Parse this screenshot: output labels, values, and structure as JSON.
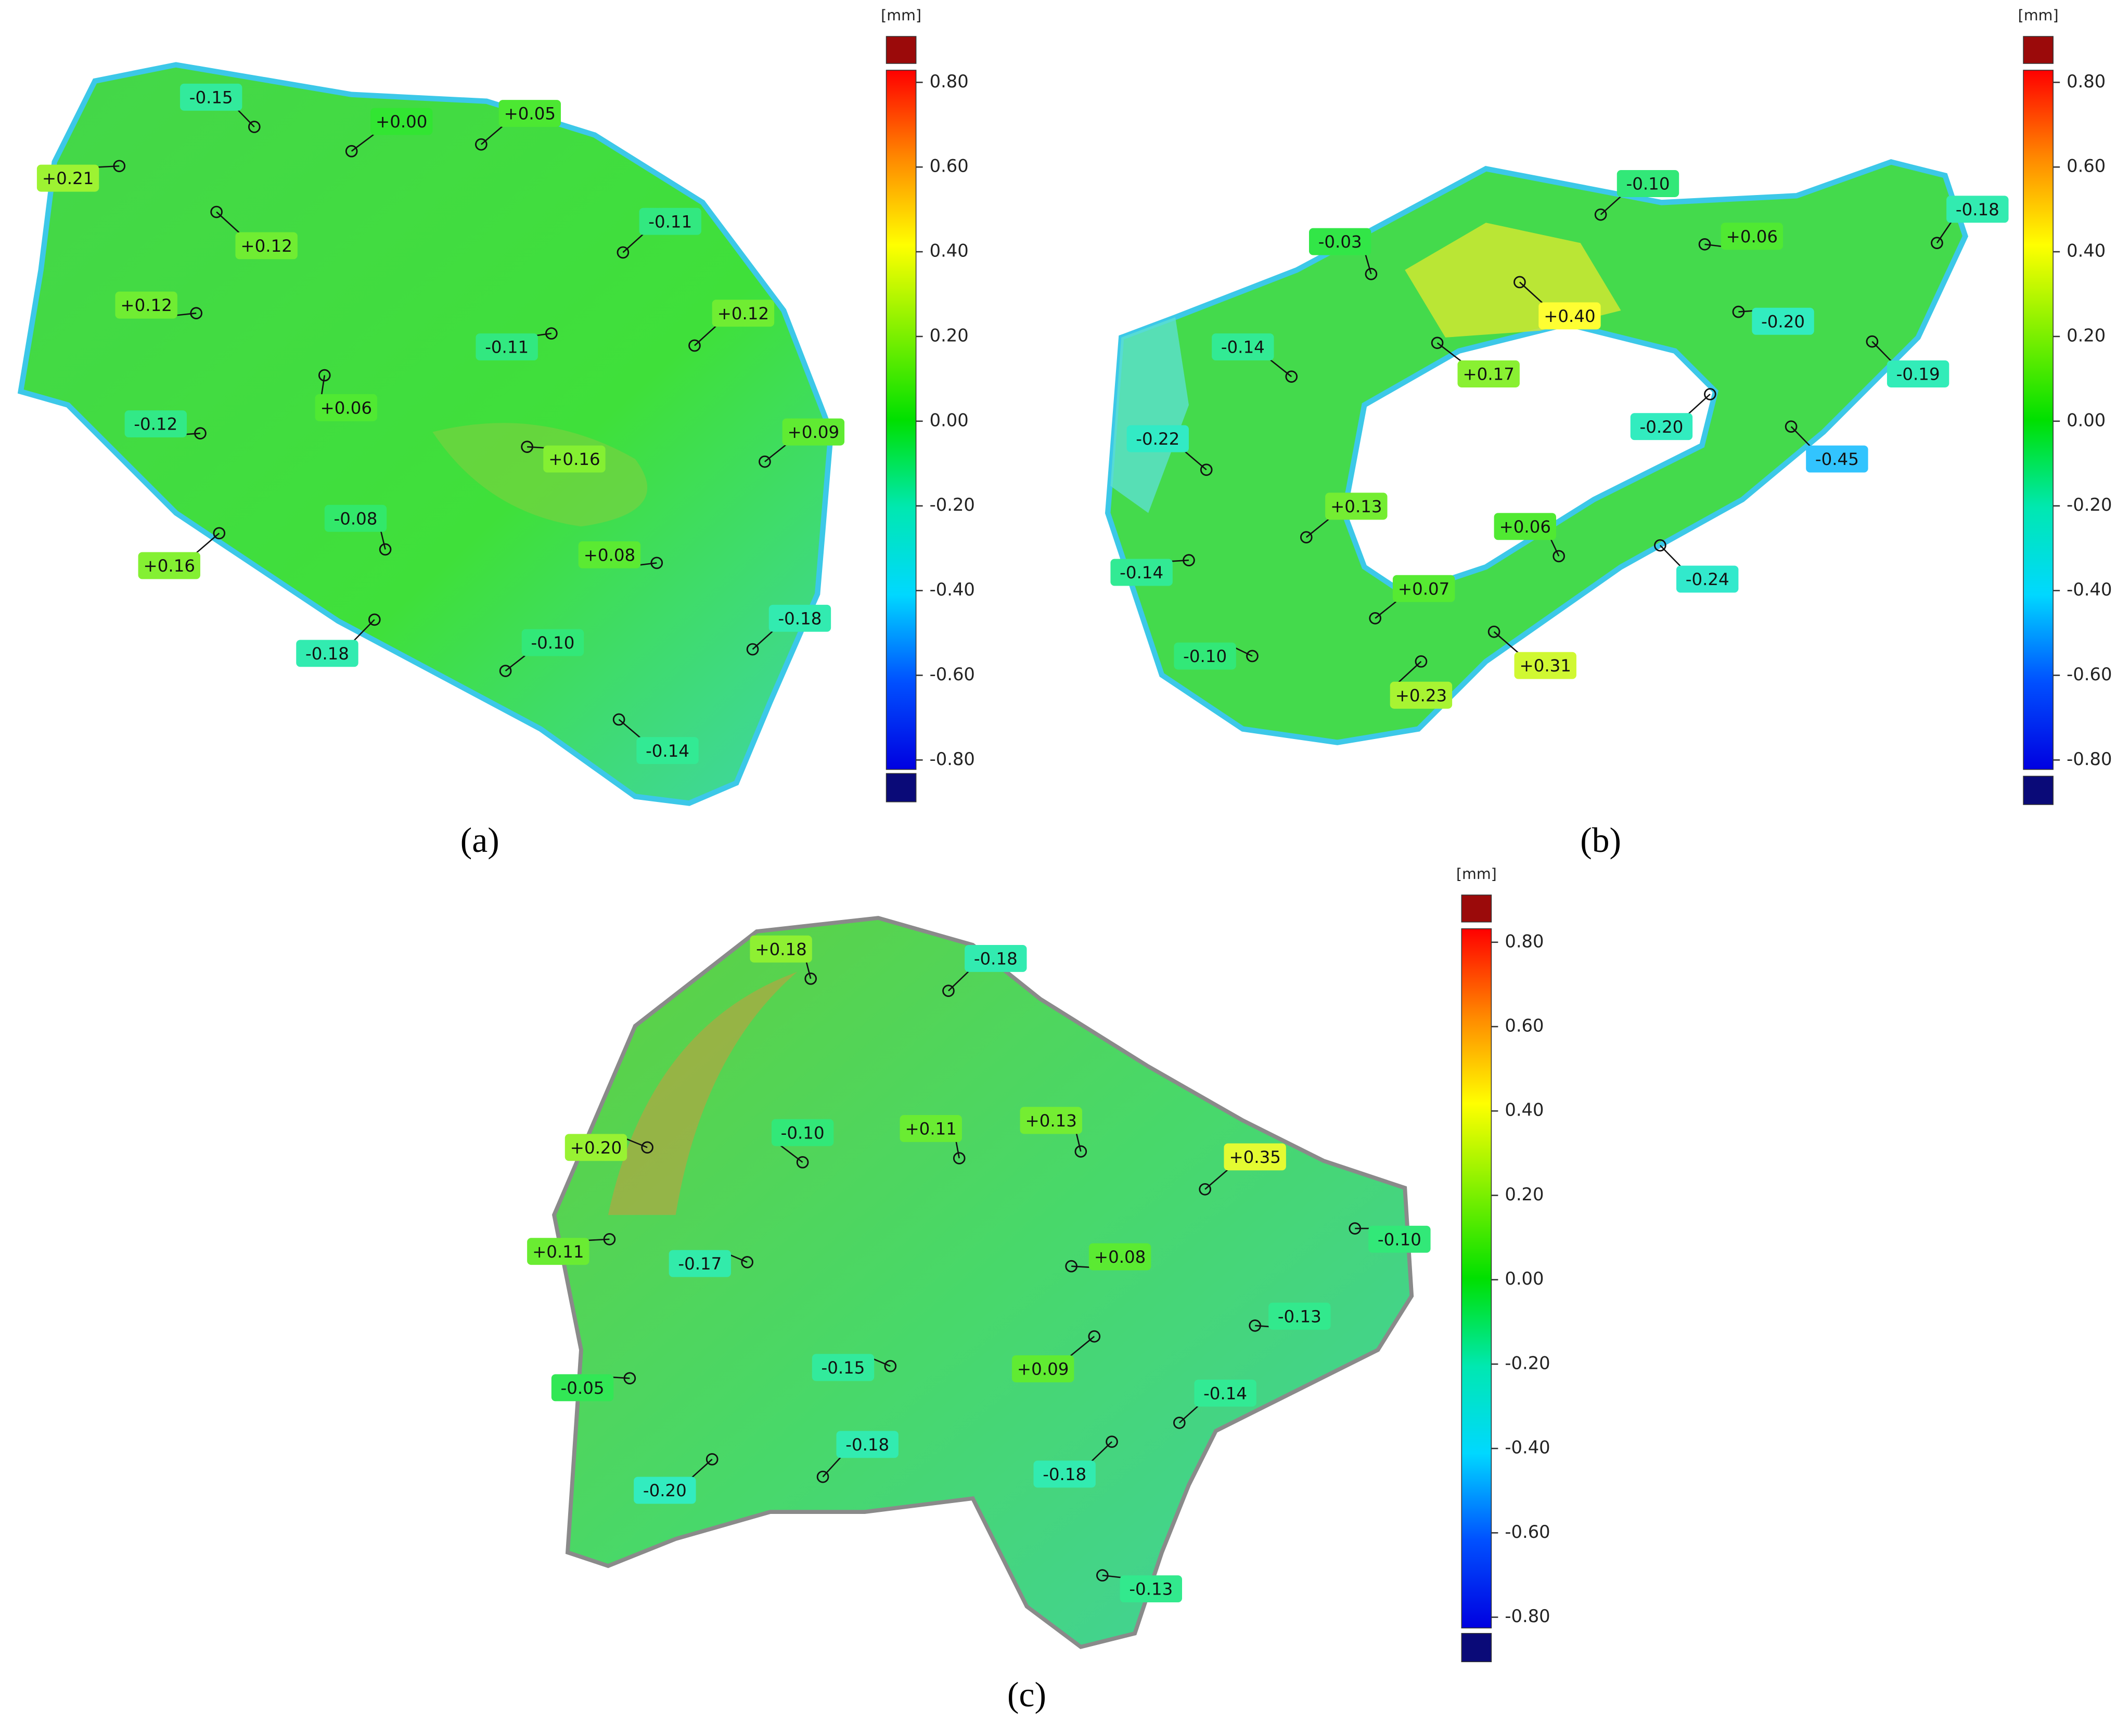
{
  "panels": [
    {
      "caption": "(a)",
      "colorbar": {
        "unit": "[mm]",
        "ticks": [
          "0.80",
          "0.60",
          "0.40",
          "0.20",
          "0.00",
          "-0.20",
          "-0.40",
          "-0.60",
          "-0.80"
        ]
      },
      "annotations": [
        "-0.15",
        "+0.00",
        "+0.05",
        "+0.21",
        "+0.12",
        "-0.11",
        "+0.12",
        "-0.11",
        "+0.12",
        "+0.06",
        "-0.12",
        "+0.09",
        "+0.16",
        "-0.08",
        "+0.16",
        "+0.08",
        "-0.18",
        "-0.10",
        "-0.18",
        "-0.14"
      ]
    },
    {
      "caption": "(b)",
      "colorbar": {
        "unit": "[mm]",
        "ticks": [
          "0.80",
          "0.60",
          "0.40",
          "0.20",
          "0.00",
          "-0.20",
          "-0.40",
          "-0.60",
          "-0.80"
        ]
      },
      "annotations": [
        "-0.10",
        "-0.18",
        "-0.03",
        "+0.06",
        "+0.40",
        "-0.14",
        "-0.20",
        "+0.17",
        "-0.19",
        "-0.20",
        "-0.22",
        "-0.45",
        "+0.13",
        "+0.06",
        "-0.14",
        "-0.24",
        "+0.07",
        "-0.10",
        "+0.31",
        "+0.23"
      ]
    },
    {
      "caption": "(c)",
      "colorbar": {
        "unit": "[mm]",
        "ticks": [
          "0.80",
          "0.60",
          "0.40",
          "0.20",
          "0.00",
          "-0.20",
          "-0.40",
          "-0.60",
          "-0.80"
        ]
      },
      "annotations": [
        "+0.18",
        "-0.18",
        "+0.20",
        "-0.10",
        "+0.11",
        "+0.13",
        "+0.35",
        "+0.11",
        "-0.10",
        "-0.17",
        "+0.08",
        "-0.13",
        "-0.15",
        "+0.09",
        "-0.05",
        "-0.14",
        "-0.18",
        "-0.18",
        "-0.20",
        "-0.13"
      ]
    }
  ]
}
